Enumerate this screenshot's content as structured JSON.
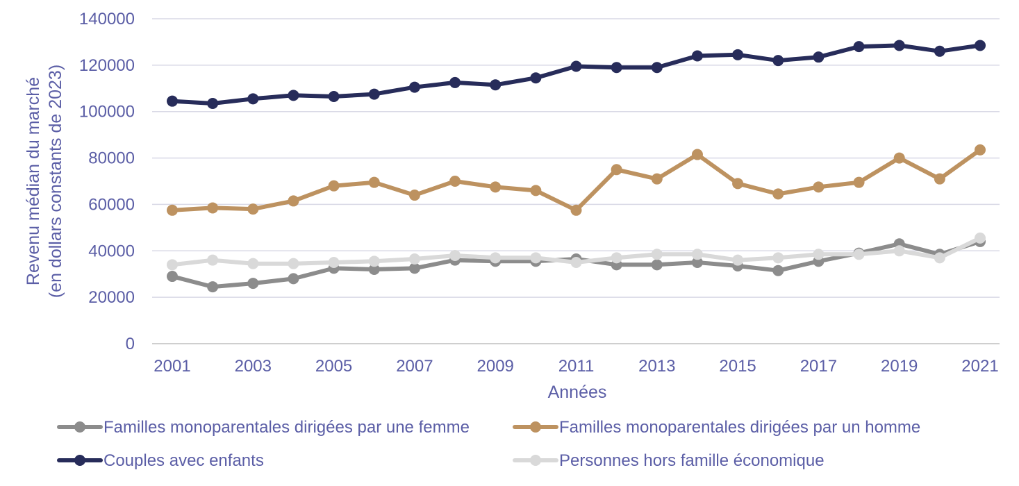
{
  "chart_data": {
    "type": "line",
    "title": "",
    "xlabel": "Années",
    "ylabel_lines": [
      "Revenu médian du marché",
      "(en dollars constants de 2023)"
    ],
    "ylim": [
      0,
      140000
    ],
    "y_ticks": [
      0,
      20000,
      40000,
      60000,
      80000,
      100000,
      120000,
      140000
    ],
    "y_tick_labels": [
      "0",
      "20000",
      "40000",
      "60000",
      "80000",
      "100000",
      "120000",
      "140000"
    ],
    "x": [
      2001,
      2002,
      2003,
      2004,
      2005,
      2006,
      2007,
      2008,
      2009,
      2010,
      2011,
      2012,
      2013,
      2014,
      2015,
      2016,
      2017,
      2018,
      2019,
      2020,
      2021
    ],
    "x_tick_labels": [
      "2001",
      "2003",
      "2005",
      "2007",
      "2009",
      "2011",
      "2013",
      "2015",
      "2017",
      "2019",
      "2021"
    ],
    "grid": "horizontal",
    "legend_position": "bottom",
    "colors": {
      "text": "#5b5ea6",
      "grid": "#d9d9e6",
      "axis": "#bfbfbf"
    },
    "series": [
      {
        "name": "Familles monoparentales dirigées par une femme",
        "color": "#8c8c8c",
        "values": [
          29000,
          24500,
          26000,
          28000,
          32500,
          32000,
          32500,
          36000,
          35500,
          35500,
          36500,
          34000,
          34000,
          35000,
          33500,
          31500,
          35500,
          39000,
          43000,
          38500,
          44000
        ]
      },
      {
        "name": "Familles monoparentales dirigées par un homme",
        "color": "#bd9260",
        "values": [
          57500,
          58500,
          58000,
          61500,
          68000,
          69500,
          64000,
          70000,
          67500,
          66000,
          57500,
          75000,
          71000,
          81500,
          69000,
          64500,
          67500,
          69500,
          80000,
          71000,
          83500
        ]
      },
      {
        "name": "Couples avec enfants",
        "color": "#272c5a",
        "values": [
          104500,
          103500,
          105500,
          107000,
          106500,
          107500,
          110500,
          112500,
          111500,
          114500,
          119500,
          119000,
          119000,
          124000,
          124500,
          122000,
          123500,
          128000,
          128500,
          126000,
          128500
        ]
      },
      {
        "name": "Personnes hors famille économique",
        "color": "#d9d9d9",
        "values": [
          34000,
          36000,
          34500,
          34500,
          35000,
          35500,
          36500,
          38000,
          37000,
          37000,
          35000,
          37000,
          38500,
          38500,
          36000,
          37000,
          38500,
          38500,
          40000,
          37000,
          45500
        ]
      }
    ],
    "legend_order": [
      0,
      1,
      2,
      3
    ]
  }
}
